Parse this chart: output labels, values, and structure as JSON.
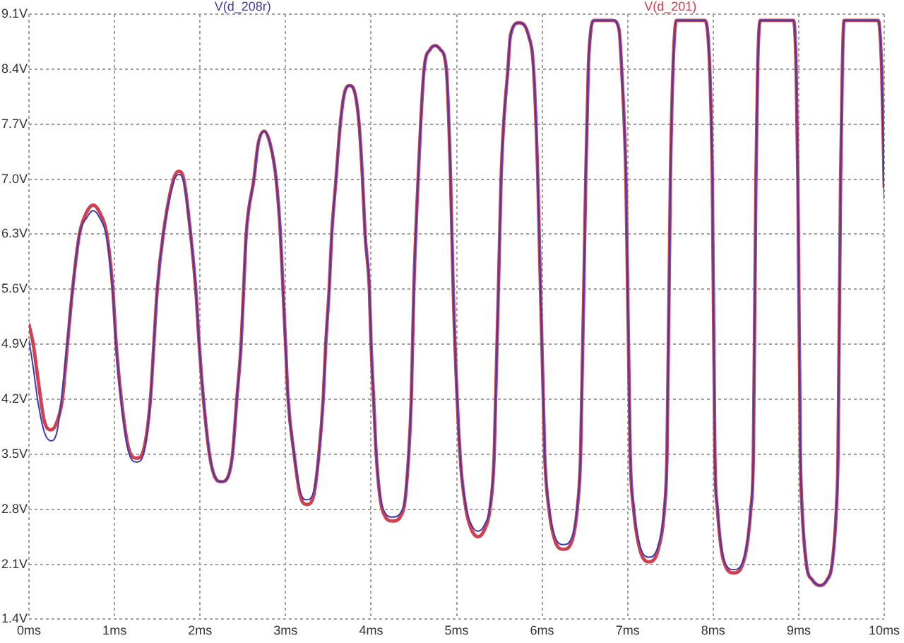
{
  "chart_data": {
    "type": "line",
    "x": [
      0,
      0.05,
      0.1,
      0.18,
      0.26,
      0.33,
      0.39,
      0.45,
      0.51,
      0.59,
      0.67,
      0.75,
      0.83,
      0.91,
      0.98,
      1.02,
      1.08,
      1.16,
      1.26,
      1.35,
      1.42,
      1.46,
      1.5,
      1.57,
      1.69,
      1.75,
      1.81,
      1.89,
      1.95,
      1.99,
      2.04,
      2.11,
      2.17,
      2.25,
      2.33,
      2.38,
      2.43,
      2.48,
      2.51,
      2.54,
      2.63,
      2.68,
      2.75,
      2.82,
      2.89,
      2.94,
      2.97,
      3.0,
      3.03,
      3.1,
      3.17,
      3.25,
      3.33,
      3.39,
      3.44,
      3.47,
      3.51,
      3.54,
      3.59,
      3.64,
      3.69,
      3.75,
      3.81,
      3.86,
      3.9,
      3.93,
      3.98,
      4.0,
      4.03,
      4.06,
      4.13,
      4.25,
      4.38,
      4.44,
      4.47,
      4.5,
      4.55,
      4.62,
      4.69,
      4.75,
      4.81,
      4.88,
      4.93,
      4.96,
      5.04,
      5.11,
      5.17,
      5.25,
      5.33,
      5.39,
      5.44,
      5.52,
      5.55,
      5.6,
      5.63,
      5.73,
      5.84,
      5.9,
      5.95,
      6.03,
      6.08,
      6.15,
      6.25,
      6.35,
      6.41,
      6.45,
      6.51,
      6.54,
      6.57,
      6.61,
      6.83,
      6.9,
      6.93,
      6.98,
      7.03,
      7.07,
      7.14,
      7.25,
      7.36,
      7.43,
      7.46,
      7.5,
      7.53,
      7.57,
      7.9,
      7.96,
      7.99,
      8.02,
      8.05,
      8.12,
      8.24,
      8.36,
      8.44,
      8.47,
      8.5,
      8.52,
      8.55,
      8.94,
      8.97,
      8.99,
      9.02,
      9.04,
      9.09,
      9.16,
      9.25,
      9.33,
      9.39,
      9.44,
      9.46,
      9.49,
      9.51,
      9.53,
      9.93,
      9.97,
      10
    ],
    "series": [
      {
        "name": "V(d_208r)",
        "color": "#3c3cb0",
        "values": [
          4.95,
          4.6,
          4.2,
          3.78,
          3.67,
          3.8,
          4.3,
          4.95,
          5.6,
          6.3,
          6.5,
          6.6,
          6.5,
          6.25,
          5.55,
          4.85,
          4.15,
          3.55,
          3.4,
          3.55,
          4.2,
          4.9,
          5.6,
          6.3,
          6.96,
          7.06,
          6.96,
          6.3,
          5.6,
          4.9,
          4.2,
          3.5,
          3.22,
          3.15,
          3.22,
          3.5,
          4.2,
          4.9,
          5.6,
          6.3,
          7.0,
          7.45,
          7.61,
          7.45,
          7.0,
          6.3,
          5.6,
          4.9,
          4.2,
          3.5,
          3.03,
          2.92,
          3.03,
          3.5,
          4.2,
          4.9,
          5.6,
          6.3,
          7.0,
          7.7,
          8.1,
          8.19,
          8.1,
          7.7,
          7.0,
          6.3,
          5.6,
          4.9,
          4.2,
          3.5,
          2.84,
          2.7,
          2.84,
          3.5,
          4.2,
          5.6,
          7.0,
          8.4,
          8.65,
          8.7,
          8.65,
          8.4,
          7.0,
          5.6,
          3.5,
          2.83,
          2.61,
          2.52,
          2.61,
          2.83,
          3.5,
          7.0,
          7.7,
          8.4,
          8.83,
          8.99,
          8.83,
          8.4,
          7.0,
          3.5,
          2.83,
          2.45,
          2.35,
          2.45,
          2.83,
          3.5,
          7.0,
          8.4,
          8.9,
          9.02,
          9.02,
          8.9,
          8.4,
          7.0,
          3.5,
          2.83,
          2.35,
          2.19,
          2.35,
          2.83,
          3.5,
          7.0,
          8.4,
          9.02,
          9.02,
          8.4,
          7.0,
          3.5,
          2.82,
          2.18,
          2.03,
          2.18,
          2.82,
          3.5,
          7.0,
          8.4,
          9.02,
          9.02,
          8.4,
          7.0,
          3.5,
          2.8,
          2.1,
          1.9,
          1.83,
          1.9,
          2.1,
          2.8,
          3.5,
          7.0,
          8.4,
          9.02,
          9.02,
          8.4,
          6.75
        ]
      },
      {
        "name": "V(d_201)",
        "color": "#d04050",
        "values": [
          5.15,
          4.9,
          4.5,
          3.92,
          3.81,
          3.92,
          4.2,
          4.9,
          5.6,
          6.3,
          6.57,
          6.67,
          6.57,
          6.3,
          5.6,
          4.9,
          4.2,
          3.6,
          3.45,
          3.6,
          4.2,
          4.9,
          5.6,
          6.3,
          7.0,
          7.1,
          7.0,
          6.3,
          5.6,
          4.9,
          4.2,
          3.5,
          3.22,
          3.15,
          3.22,
          3.5,
          4.2,
          4.9,
          5.6,
          6.3,
          7.0,
          7.45,
          7.61,
          7.45,
          7.0,
          6.3,
          5.6,
          4.9,
          4.2,
          3.5,
          2.98,
          2.86,
          2.98,
          3.5,
          4.2,
          4.9,
          5.6,
          6.3,
          7.0,
          7.7,
          8.1,
          8.19,
          8.1,
          7.7,
          7.0,
          6.3,
          5.6,
          4.9,
          4.2,
          3.5,
          2.8,
          2.65,
          2.8,
          3.5,
          4.2,
          5.6,
          7.0,
          8.4,
          8.65,
          8.7,
          8.65,
          8.4,
          7.0,
          5.6,
          3.5,
          2.8,
          2.55,
          2.45,
          2.55,
          2.8,
          3.5,
          7.0,
          7.7,
          8.4,
          8.83,
          8.99,
          8.83,
          8.4,
          7.0,
          3.5,
          2.8,
          2.4,
          2.29,
          2.4,
          2.8,
          3.5,
          7.0,
          8.4,
          8.9,
          9.02,
          9.02,
          8.9,
          8.4,
          7.0,
          3.5,
          2.8,
          2.3,
          2.13,
          2.3,
          2.8,
          3.5,
          7.0,
          8.4,
          9.02,
          9.02,
          8.4,
          7.0,
          3.5,
          2.8,
          2.15,
          1.99,
          2.15,
          2.8,
          3.5,
          7.0,
          8.4,
          9.02,
          9.02,
          8.4,
          7.0,
          3.5,
          2.8,
          2.1,
          1.9,
          1.83,
          1.9,
          2.1,
          2.8,
          3.5,
          7.0,
          8.4,
          9.02,
          9.02,
          8.4,
          6.9
        ]
      }
    ],
    "xlim": [
      0,
      10
    ],
    "xticks": [
      {
        "value": 0,
        "label": "0ms"
      },
      {
        "value": 1,
        "label": "1ms"
      },
      {
        "value": 2,
        "label": "2ms"
      },
      {
        "value": 3,
        "label": "3ms"
      },
      {
        "value": 4,
        "label": "4ms"
      },
      {
        "value": 5,
        "label": "5ms"
      },
      {
        "value": 6,
        "label": "6ms"
      },
      {
        "value": 7,
        "label": "7ms"
      },
      {
        "value": 8,
        "label": "8ms"
      },
      {
        "value": 9,
        "label": "9ms"
      },
      {
        "value": 10,
        "label": "10ms"
      }
    ],
    "ylim": [
      1.4,
      9.1
    ],
    "yticks": [
      {
        "value": 1.4,
        "label": "1.4V"
      },
      {
        "value": 2.1,
        "label": "2.1V"
      },
      {
        "value": 2.8,
        "label": "2.8V"
      },
      {
        "value": 3.5,
        "label": "3.5V"
      },
      {
        "value": 4.2,
        "label": "4.2V"
      },
      {
        "value": 4.9,
        "label": "4.9V"
      },
      {
        "value": 5.6,
        "label": "5.6V"
      },
      {
        "value": 6.3,
        "label": "6.3V"
      },
      {
        "value": 7.0,
        "label": "7.0V"
      },
      {
        "value": 7.7,
        "label": "7.7V"
      },
      {
        "value": 8.4,
        "label": "8.4V"
      },
      {
        "value": 9.1,
        "label": "9.1V"
      }
    ],
    "grid": true,
    "legend": "top",
    "marker": "none",
    "line_style": "solid"
  }
}
